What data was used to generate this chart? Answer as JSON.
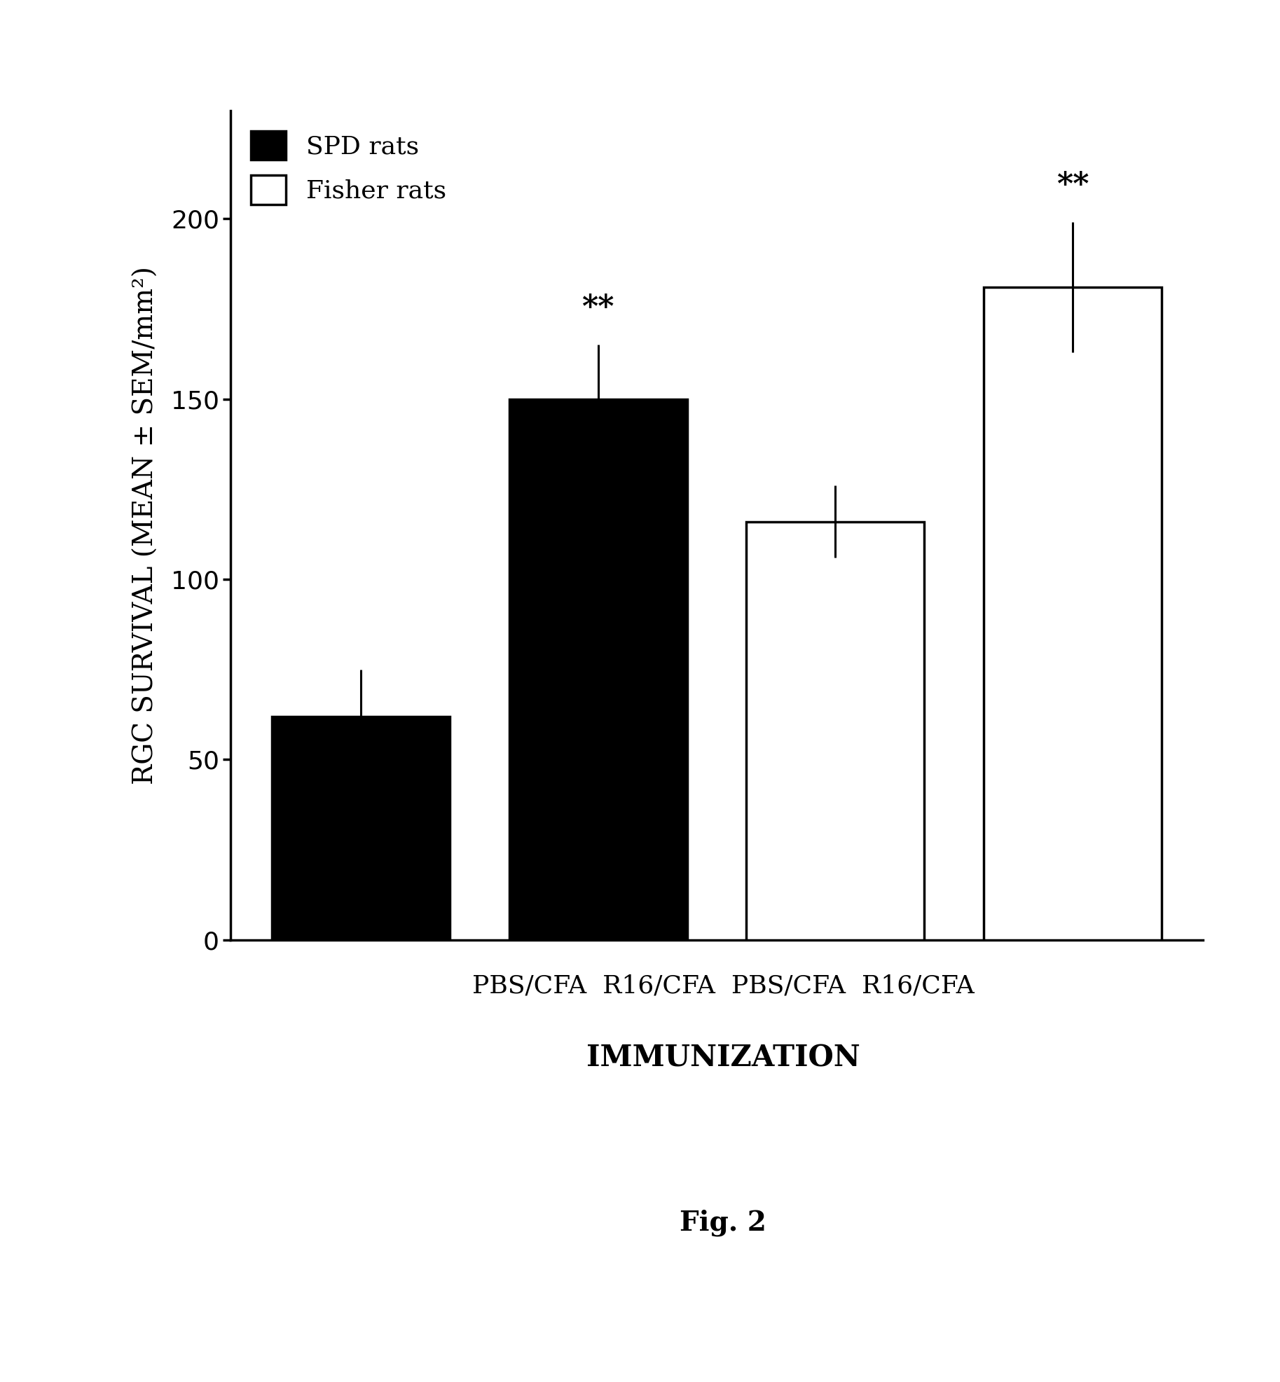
{
  "categories": [
    "PBS/CFA",
    "R16/CFA",
    "PBS/CFA",
    "R16/CFA"
  ],
  "values": [
    62,
    150,
    116,
    181
  ],
  "errors": [
    13,
    15,
    10,
    18
  ],
  "colors": [
    "#000000",
    "#000000",
    "#ffffff",
    "#ffffff"
  ],
  "edge_colors": [
    "#000000",
    "#000000",
    "#000000",
    "#000000"
  ],
  "significance": [
    false,
    true,
    false,
    true
  ],
  "sig_label": "**",
  "ylabel": "RGC SURVIVAL (MEAN ± SEM/mm²)",
  "xlabel_line1": "PBS/CFA  R16/CFA  PBS/CFA  R16/CFA",
  "xlabel_line2": "IMMUNIZATION",
  "ylim": [
    0,
    230
  ],
  "yticks": [
    0,
    50,
    100,
    150,
    200
  ],
  "legend_labels": [
    "SPD rats",
    "Fisher rats"
  ],
  "legend_colors": [
    "#000000",
    "#ffffff"
  ],
  "fig_caption": "Fig. 2",
  "bar_width": 0.75,
  "bar_positions": [
    1,
    2,
    3,
    4
  ],
  "background_color": "#ffffff",
  "label_fontsize": 28,
  "tick_fontsize": 26,
  "legend_fontsize": 26,
  "sig_fontsize": 32,
  "caption_fontsize": 28,
  "xlabel_fontsize": 26,
  "immunization_fontsize": 30
}
